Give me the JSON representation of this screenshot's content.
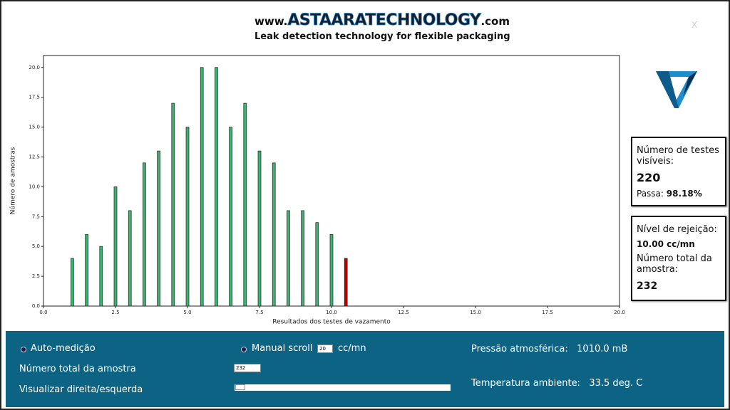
{
  "header": {
    "prefix": "www.",
    "brand": "ASTAARATECHNOLOGY",
    "suffix": ".com",
    "tagline": "Leak detection technology for flexible packaging",
    "close": "X"
  },
  "chart_data": {
    "type": "bar",
    "x_label": "Resultados dos testes de vazamento",
    "y_label": "Número de amostras",
    "x": [
      1.0,
      1.5,
      2.0,
      2.5,
      3.0,
      3.5,
      4.0,
      4.5,
      5.0,
      5.5,
      6.0,
      6.5,
      7.0,
      7.5,
      8.0,
      8.5,
      9.0,
      9.5,
      10.0,
      10.5
    ],
    "values": [
      4,
      6,
      5,
      10,
      8,
      12,
      13,
      17,
      15,
      20,
      20,
      15,
      17,
      13,
      12,
      8,
      8,
      7,
      6,
      4
    ],
    "colors": [
      "#3cb371",
      "#3cb371",
      "#3cb371",
      "#3cb371",
      "#3cb371",
      "#3cb371",
      "#3cb371",
      "#3cb371",
      "#3cb371",
      "#3cb371",
      "#3cb371",
      "#3cb371",
      "#3cb371",
      "#3cb371",
      "#3cb371",
      "#3cb371",
      "#3cb371",
      "#3cb371",
      "#3cb371",
      "#c00000"
    ],
    "xlim": [
      0,
      20
    ],
    "ylim": [
      0,
      21
    ],
    "xticks": [
      {
        "value": 0,
        "label": "0.0"
      },
      {
        "value": 2.5,
        "label": "2.5"
      },
      {
        "value": 5,
        "label": "5.0"
      },
      {
        "value": 7.5,
        "label": "7.5"
      },
      {
        "value": 10,
        "label": "10.0"
      },
      {
        "value": 12.5,
        "label": "12.5"
      },
      {
        "value": 15,
        "label": "15.0"
      },
      {
        "value": 17.5,
        "label": "17.5"
      },
      {
        "value": 20,
        "label": "20.0"
      }
    ],
    "yticks": [
      {
        "value": 0,
        "label": "0.0"
      },
      {
        "value": 2.5,
        "label": "2.5"
      },
      {
        "value": 5,
        "label": "5.0"
      },
      {
        "value": 7.5,
        "label": "7.5"
      },
      {
        "value": 10,
        "label": "10.0"
      },
      {
        "value": 12.5,
        "label": "12.5"
      },
      {
        "value": 15,
        "label": "15.0"
      },
      {
        "value": 17.5,
        "label": "17.5"
      },
      {
        "value": 20,
        "label": "20.0"
      }
    ],
    "grid": false
  },
  "stats": {
    "visible_label": "Número de testes visíveis:",
    "visible_value": "220",
    "pass_label": "Passa:",
    "pass_value": "98.18%",
    "reject_label": "Nível de rejeição:",
    "reject_value": "10.00 cc/mn",
    "total_label": "Número total da amostra:",
    "total_value": "232"
  },
  "controls": {
    "auto": "Auto-medição",
    "manual": "Manual scroll",
    "scroll_value": "20",
    "scroll_unit": "cc/mn",
    "total_label": "Número total da amostra",
    "total_value": "232",
    "view_label": "Visualizar direita/esquerda",
    "pressure_label": "Pressão atmosférica:",
    "pressure_value": "1010.0 mB",
    "temp_label": "Temperatura ambiente:",
    "temp_value": "33.5 deg. C"
  }
}
